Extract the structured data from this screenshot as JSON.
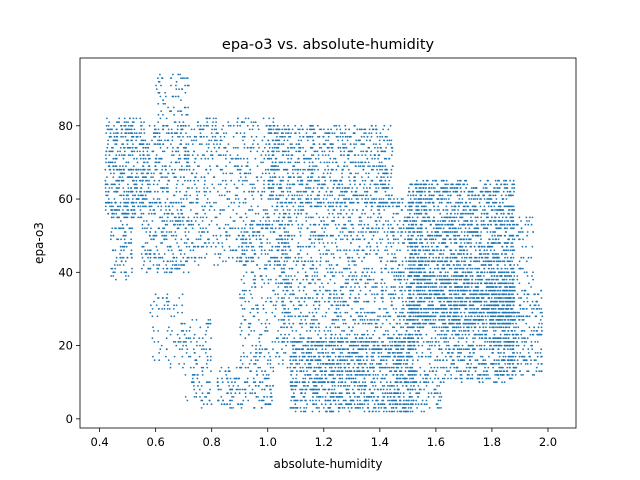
{
  "chart_data": {
    "type": "scatter",
    "title": "epa-o3 vs. absolute-humidity",
    "xlabel": "absolute-humidity",
    "ylabel": "epa-o3",
    "xlim": [
      0.33,
      2.1
    ],
    "ylim": [
      -2.5,
      98.5
    ],
    "xticks": [
      0.4,
      0.6,
      0.8,
      1.0,
      1.2,
      1.4,
      1.6,
      1.8,
      2.0
    ],
    "xtick_labels": [
      "0.4",
      "0.6",
      "0.8",
      "1.0",
      "1.2",
      "1.4",
      "1.6",
      "1.8",
      "2.0"
    ],
    "yticks": [
      0,
      20,
      40,
      60,
      80
    ],
    "ytick_labels": [
      "0",
      "20",
      "40",
      "60",
      "80"
    ],
    "grid": false,
    "marker_color": "#1f77b4",
    "clusters": [
      {
        "x": [
          0.42,
          0.56
        ],
        "y": [
          55,
          82
        ],
        "density": 420
      },
      {
        "x": [
          0.44,
          0.52
        ],
        "y": [
          38,
          60
        ],
        "density": 120
      },
      {
        "x": [
          0.55,
          0.72
        ],
        "y": [
          40,
          80
        ],
        "density": 520
      },
      {
        "x": [
          0.6,
          0.72
        ],
        "y": [
          78,
          94
        ],
        "density": 90
      },
      {
        "x": [
          0.58,
          0.7
        ],
        "y": [
          14,
          34
        ],
        "density": 80
      },
      {
        "x": [
          0.7,
          0.8
        ],
        "y": [
          3,
          28
        ],
        "density": 110
      },
      {
        "x": [
          0.72,
          1.05
        ],
        "y": [
          42,
          82
        ],
        "density": 650
      },
      {
        "x": [
          0.82,
          1.02
        ],
        "y": [
          3,
          14
        ],
        "density": 160
      },
      {
        "x": [
          0.9,
          1.08
        ],
        "y": [
          14,
          55
        ],
        "density": 340
      },
      {
        "x": [
          1.0,
          1.45
        ],
        "y": [
          58,
          80
        ],
        "density": 900
      },
      {
        "x": [
          1.05,
          1.55
        ],
        "y": [
          20,
          60
        ],
        "density": 1300
      },
      {
        "x": [
          1.08,
          1.52
        ],
        "y": [
          2,
          22
        ],
        "density": 1200
      },
      {
        "x": [
          1.45,
          1.62
        ],
        "y": [
          2,
          40
        ],
        "density": 420
      },
      {
        "x": [
          1.5,
          1.88
        ],
        "y": [
          25,
          65
        ],
        "density": 2200
      },
      {
        "x": [
          1.62,
          1.88
        ],
        "y": [
          10,
          40
        ],
        "density": 700
      },
      {
        "x": [
          1.8,
          1.98
        ],
        "y": [
          12,
          35
        ],
        "density": 380
      },
      {
        "x": [
          1.85,
          1.95
        ],
        "y": [
          35,
          55
        ],
        "density": 90
      }
    ]
  }
}
